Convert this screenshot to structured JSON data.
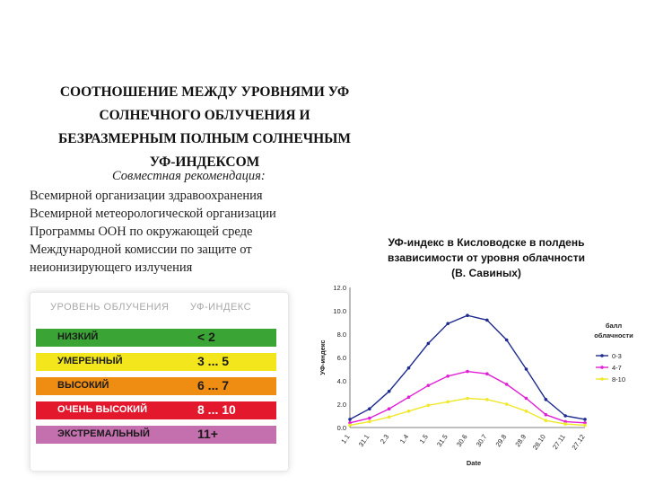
{
  "title_lines": [
    "СООТНОШЕНИЕ МЕЖДУ УРОВНЯМИ УФ",
    "СОЛНЕЧНОГО ОБЛУЧЕНИЯ И",
    "БЕЗРАЗМЕРНЫМ ПОЛНЫМ СОЛНЕЧНЫМ",
    "УФ-ИНДЕКСОМ"
  ],
  "recommendation": {
    "heading": "Совместная рекомендация:",
    "items": [
      "Всемирной организации здравоохранения",
      "Всемирной метеорологической организации",
      "Программы ООН по окружающей среде",
      "Международной комиссии по защите от",
      "неионизирующего излучения"
    ]
  },
  "uv_table": {
    "header_level": "УРОВЕНЬ ОБЛУЧЕНИЯ",
    "header_index": "УФ-ИНДЕКС",
    "rows": [
      {
        "level": "НИЗКИЙ",
        "index": "< 2",
        "color": "#3aa535",
        "text_color": "#1a1a1a"
      },
      {
        "level": "УМЕРЕННЫЙ",
        "index": "3 ... 5",
        "color": "#f3e61c",
        "text_color": "#1a1a1a"
      },
      {
        "level": "ВЫСОКИЙ",
        "index": "6 ... 7",
        "color": "#ef8d13",
        "text_color": "#1a1a1a"
      },
      {
        "level": "ОЧЕНЬ ВЫСОКИЙ",
        "index": "8 ... 10",
        "color": "#e3182d",
        "text_color": "#ffffff"
      },
      {
        "level": "ЭКСТРЕМАЛЬНЫЙ",
        "index": "11+",
        "color": "#c46fae",
        "text_color": "#1a1a1a"
      }
    ]
  },
  "chart_data": {
    "type": "line",
    "title_lines": [
      "УФ-индекс в Кисловодске в полдень",
      "взависимости от уровня облачности",
      "(В. Савиных)"
    ],
    "xlabel": "Date",
    "ylabel": "УФ-индекс",
    "ylim": [
      0,
      12
    ],
    "yticks": [
      "0.0",
      "2.0",
      "4.0",
      "6.0",
      "8.0",
      "10.0",
      "12.0"
    ],
    "categories": [
      "1.1",
      "31.1",
      "2.3",
      "1.4",
      "1.5",
      "31.5",
      "30.6",
      "30.7",
      "29.8",
      "28.9",
      "28.10",
      "27.11",
      "27.12"
    ],
    "legend": {
      "title_lines": [
        "балл",
        "облачности"
      ],
      "placement": "right"
    },
    "series": [
      {
        "name": "0-3",
        "color": "#1f2b8f",
        "values": [
          0.7,
          1.6,
          3.1,
          5.1,
          7.2,
          8.9,
          9.6,
          9.2,
          7.5,
          5.0,
          2.4,
          1.0,
          0.7
        ]
      },
      {
        "name": "4-7",
        "color": "#e020d6",
        "values": [
          0.4,
          0.8,
          1.6,
          2.6,
          3.6,
          4.4,
          4.8,
          4.6,
          3.7,
          2.5,
          1.1,
          0.5,
          0.4
        ]
      },
      {
        "name": "8-10",
        "color": "#f0e82a",
        "values": [
          0.2,
          0.5,
          0.9,
          1.4,
          1.9,
          2.2,
          2.5,
          2.4,
          2.0,
          1.4,
          0.6,
          0.3,
          0.2
        ]
      }
    ]
  }
}
